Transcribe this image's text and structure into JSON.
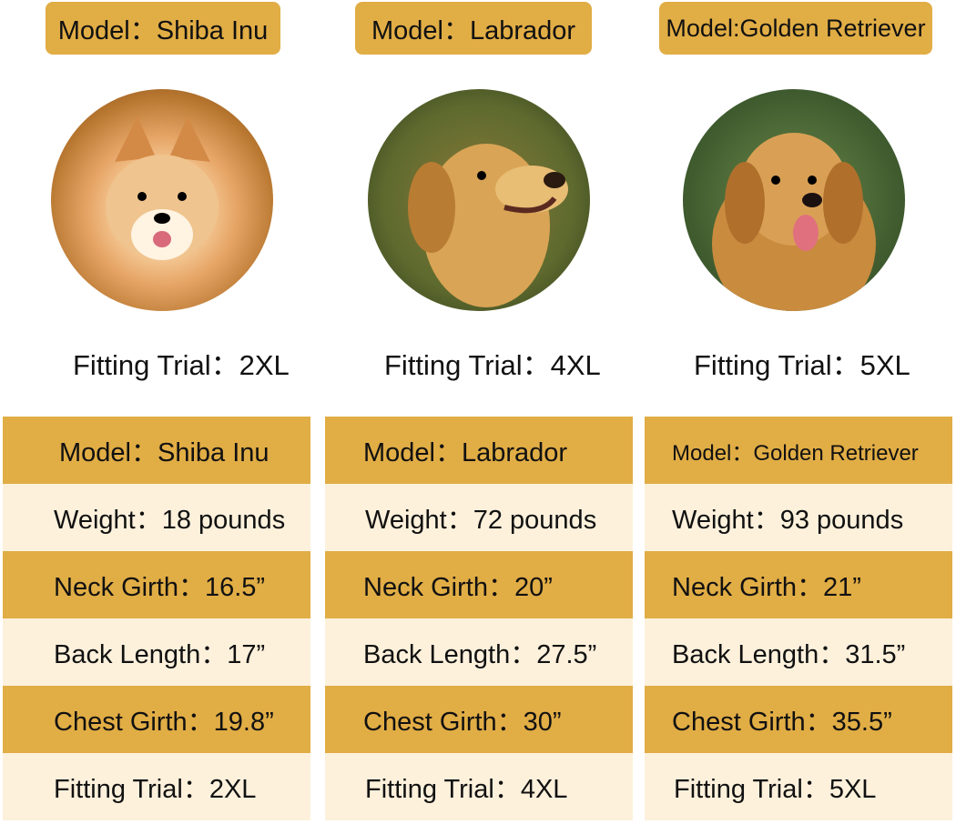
{
  "colors": {
    "gold": "#e1ad45",
    "cream": "#fdf1dc"
  },
  "dogs": [
    {
      "tag": "Model：Shiba Inu",
      "trial": "Fitting Trial：2XL",
      "photo": "shiba-inu-photo",
      "rows": [
        "Model：Shiba Inu",
        "Weight：18 pounds",
        "Neck Girth：16.5”",
        "Back Length：17”",
        "Chest Girth：19.8”",
        "Fitting Trial：2XL"
      ]
    },
    {
      "tag": "Model：Labrador",
      "trial": "Fitting Trial：4XL",
      "photo": "labrador-photo",
      "rows": [
        "Model：Labrador",
        "Weight：72 pounds",
        "Neck Girth：20”",
        "Back Length：27.5”",
        "Chest Girth：30”",
        "Fitting Trial：4XL"
      ]
    },
    {
      "tag": "Model:Golden Retriever",
      "trial": "Fitting Trial：5XL",
      "photo": "golden-retriever-photo",
      "rows": [
        "Model：Golden Retriever",
        "Weight：93 pounds",
        "Neck Girth：21”",
        "Back Length：31.5”",
        "Chest Girth：35.5”",
        "Fitting Trial：5XL"
      ]
    }
  ]
}
